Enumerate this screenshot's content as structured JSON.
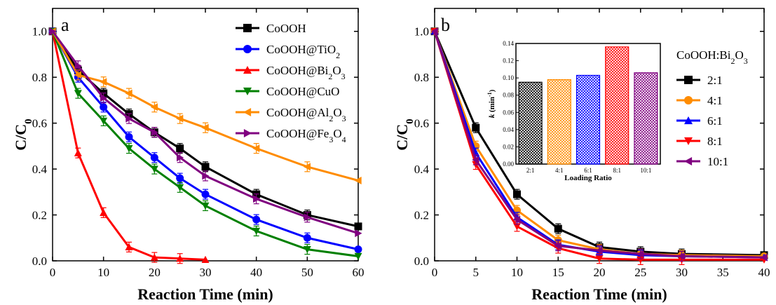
{
  "chart_data": [
    {
      "panel": "a",
      "type": "line",
      "xlabel": "Reaction Time (min)",
      "ylabel": "C/C0",
      "xlim": [
        0,
        60
      ],
      "ylim": [
        0,
        1.1
      ],
      "xticks": [
        0,
        10,
        20,
        30,
        40,
        50,
        60
      ],
      "yticks": [
        0.0,
        0.2,
        0.4,
        0.6,
        0.8,
        1.0
      ],
      "legend_position": "top-right",
      "series": [
        {
          "name": "CoOOH",
          "label_main": "CoOOH",
          "label_sub": "",
          "color": "#000000",
          "marker": "square",
          "x": [
            0,
            5,
            10,
            15,
            20,
            25,
            30,
            40,
            50,
            60
          ],
          "y": [
            1.0,
            0.83,
            0.73,
            0.64,
            0.56,
            0.49,
            0.41,
            0.29,
            0.2,
            0.15
          ]
        },
        {
          "name": "CoOOH@TiO2",
          "label_main": "CoOOH@TiO",
          "label_sub": "2",
          "color": "#0000FF",
          "marker": "circle",
          "x": [
            0,
            5,
            10,
            15,
            20,
            25,
            30,
            40,
            50,
            60
          ],
          "y": [
            1.0,
            0.8,
            0.67,
            0.54,
            0.45,
            0.36,
            0.29,
            0.18,
            0.1,
            0.05
          ]
        },
        {
          "name": "CoOOH@Bi2O3",
          "label_main": "CoOOH@Bi",
          "label_sub": "2",
          "label_main2": "O",
          "label_sub2": "3",
          "color": "#FF0000",
          "marker": "triangle-up",
          "x": [
            0,
            5,
            10,
            15,
            20,
            25,
            30
          ],
          "y": [
            1.0,
            0.47,
            0.21,
            0.06,
            0.015,
            0.01,
            0.005
          ]
        },
        {
          "name": "CoOOH@CuO",
          "label_main": "CoOOH@CuO",
          "label_sub": "",
          "color": "#008000",
          "marker": "triangle-down",
          "x": [
            0,
            5,
            10,
            15,
            20,
            25,
            30,
            40,
            50,
            60
          ],
          "y": [
            1.0,
            0.73,
            0.61,
            0.49,
            0.4,
            0.32,
            0.24,
            0.13,
            0.05,
            0.02
          ]
        },
        {
          "name": "CoOOH@Al2O3",
          "label_main": "CoOOH@Al",
          "label_sub": "2",
          "label_main2": "O",
          "label_sub2": "3",
          "color": "#FF8C00",
          "marker": "triangle-left",
          "x": [
            0,
            5,
            10,
            15,
            20,
            25,
            30,
            40,
            50,
            60
          ],
          "y": [
            1.0,
            0.81,
            0.78,
            0.73,
            0.67,
            0.62,
            0.58,
            0.49,
            0.41,
            0.35
          ]
        },
        {
          "name": "CoOOH@Fe3O4",
          "label_main": "CoOOH@Fe",
          "label_sub": "3",
          "label_main2": "O",
          "label_sub2": "4",
          "color": "#800080",
          "marker": "triangle-right",
          "x": [
            0,
            5,
            10,
            15,
            20,
            25,
            30,
            40,
            50,
            60
          ],
          "y": [
            1.0,
            0.85,
            0.71,
            0.62,
            0.56,
            0.45,
            0.37,
            0.27,
            0.19,
            0.12
          ]
        }
      ]
    },
    {
      "panel": "b",
      "type": "line",
      "xlabel": "Reaction Time (min)",
      "ylabel": "C/C0",
      "xlim": [
        0,
        40
      ],
      "ylim": [
        0,
        1.1
      ],
      "xticks": [
        0,
        5,
        10,
        15,
        20,
        25,
        30,
        35,
        40
      ],
      "yticks": [
        0.0,
        0.2,
        0.4,
        0.6,
        0.8,
        1.0
      ],
      "legend_title": "CoOOH:Bi2O3",
      "legend_position": "right",
      "series": [
        {
          "name": "2:1",
          "color": "#000000",
          "marker": "square",
          "x": [
            0,
            5,
            10,
            15,
            20,
            25,
            30,
            40
          ],
          "y": [
            1.0,
            0.58,
            0.29,
            0.14,
            0.06,
            0.04,
            0.03,
            0.025
          ]
        },
        {
          "name": "4:1",
          "color": "#FF8C00",
          "marker": "circle",
          "x": [
            0,
            5,
            10,
            15,
            20,
            25,
            30,
            40
          ],
          "y": [
            1.0,
            0.5,
            0.22,
            0.09,
            0.05,
            0.03,
            0.025,
            0.02
          ]
        },
        {
          "name": "6:1",
          "color": "#0000FF",
          "marker": "triangle-up",
          "x": [
            0,
            5,
            10,
            15,
            20,
            25,
            30,
            40
          ],
          "y": [
            1.0,
            0.47,
            0.19,
            0.07,
            0.04,
            0.025,
            0.02,
            0.015
          ]
        },
        {
          "name": "8:1",
          "color": "#FF0000",
          "marker": "triangle-down",
          "x": [
            0,
            5,
            10,
            15,
            20,
            25,
            30,
            40
          ],
          "y": [
            1.0,
            0.42,
            0.15,
            0.055,
            0.01,
            0.005,
            0.005,
            0.005
          ]
        },
        {
          "name": "10:1",
          "color": "#800080",
          "marker": "triangle-left",
          "x": [
            0,
            5,
            10,
            15,
            20,
            25,
            30,
            40
          ],
          "y": [
            1.0,
            0.44,
            0.18,
            0.065,
            0.045,
            0.03,
            0.02,
            0.015
          ]
        }
      ]
    },
    {
      "panel": "b-inset",
      "type": "bar",
      "xlabel": "Loading Ratio",
      "ylabel": "k (min-1)",
      "categories": [
        "2:1",
        "4:1",
        "6:1",
        "8:1",
        "10:1"
      ],
      "values": [
        0.095,
        0.098,
        0.103,
        0.136,
        0.106
      ],
      "colors": [
        "#000000",
        "#FF8C00",
        "#0000FF",
        "#FF0000",
        "#800080"
      ],
      "ylim": [
        0,
        0.14
      ],
      "yticks": [
        0.0,
        0.02,
        0.04,
        0.06,
        0.08,
        0.1,
        0.12,
        0.14
      ],
      "ytick_labels": [
        "0.00",
        "0.02",
        "0.04",
        "0.06",
        "0.08",
        "0.10",
        "0.12",
        "0.14"
      ]
    }
  ],
  "labels": {
    "panel_a": "a",
    "panel_b": "b",
    "ylabel_main": "C/C",
    "ylabel_sub": "0",
    "xlabel": "Reaction Time (min)",
    "legend_b_title_main": "CoOOH:Bi",
    "legend_b_title_sub1": "2",
    "legend_b_title_mid": "O",
    "legend_b_title_sub2": "3",
    "inset_ylabel_k": "k",
    "inset_ylabel_unit_main": " (min",
    "inset_ylabel_unit_sup": "-1",
    "inset_ylabel_unit_end": ")",
    "inset_xlabel": "Loading Ratio"
  }
}
